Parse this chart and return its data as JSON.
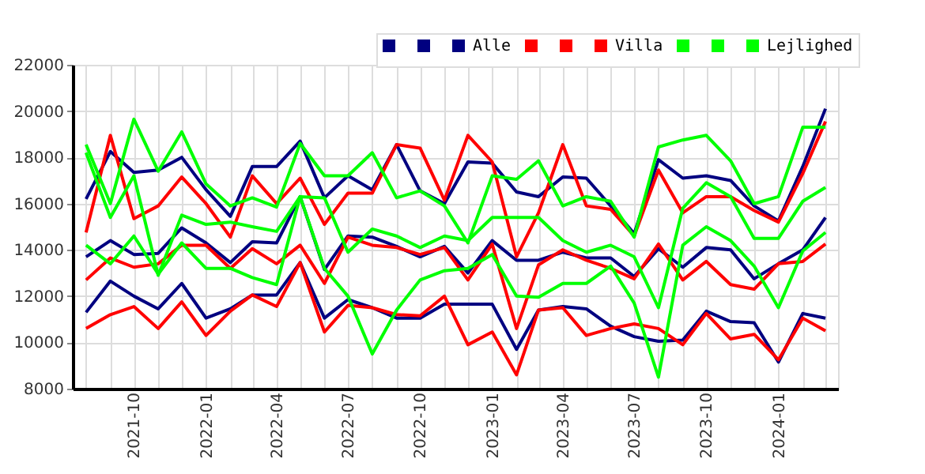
{
  "chart_data": {
    "type": "line",
    "x": [
      "2021-08",
      "2021-09",
      "2021-10",
      "2021-11",
      "2021-12",
      "2022-01",
      "2022-02",
      "2022-03",
      "2022-04",
      "2022-05",
      "2022-06",
      "2022-07",
      "2022-08",
      "2022-09",
      "2022-10",
      "2022-11",
      "2022-12",
      "2023-01",
      "2023-02",
      "2023-03",
      "2023-04",
      "2023-05",
      "2023-06",
      "2023-07",
      "2023-08",
      "2023-09",
      "2023-10",
      "2023-11",
      "2023-12",
      "2024-01",
      "2024-02",
      "2024-03"
    ],
    "series": [
      {
        "color": "#000080",
        "values": [
          16200,
          18250,
          17350,
          17450,
          18000,
          16600,
          15450,
          17600,
          17600,
          18700,
          16250,
          17200,
          16600,
          18550,
          16550,
          16000,
          17800,
          17750,
          16500,
          16300,
          17150,
          17100,
          15900,
          14700,
          17900,
          17100,
          17200,
          17000,
          15900,
          15250,
          17600,
          20100
        ]
      },
      {
        "color": "#000080",
        "values": [
          13700,
          14400,
          13800,
          13850,
          14950,
          14300,
          13450,
          14350,
          14300,
          16300,
          13150,
          14600,
          14550,
          14150,
          13700,
          14150,
          13000,
          14400,
          13550,
          13550,
          13900,
          13650,
          13650,
          12850,
          14050,
          13250,
          14100,
          14000,
          12750,
          13400,
          14000,
          15400
        ]
      },
      {
        "name": "Alle",
        "color": "#000080",
        "values": [
          11300,
          12650,
          12000,
          11450,
          12550,
          11050,
          11450,
          12050,
          12050,
          13450,
          11050,
          11850,
          11500,
          11050,
          11050,
          11650,
          11650,
          11650,
          9700,
          11400,
          11550,
          11450,
          10700,
          10250,
          10050,
          10100,
          11350,
          10900,
          10850,
          9150,
          11250,
          11050
        ]
      },
      {
        "color": "#ff0000",
        "values": [
          14750,
          18950,
          15350,
          15900,
          17150,
          16000,
          14550,
          17200,
          16000,
          17100,
          15100,
          16450,
          16450,
          18550,
          18400,
          16150,
          18950,
          17800,
          13700,
          15600,
          18550,
          15900,
          15750,
          14600,
          17450,
          15600,
          16300,
          16300,
          15700,
          15200,
          17300,
          19550
        ]
      },
      {
        "color": "#ff0000",
        "values": [
          12700,
          13650,
          13250,
          13400,
          14200,
          14200,
          13200,
          14050,
          13400,
          14200,
          12550,
          14550,
          14200,
          14100,
          13800,
          14100,
          12700,
          14250,
          10600,
          13350,
          14000,
          13550,
          13200,
          12750,
          14250,
          12700,
          13500,
          12500,
          12300,
          13400,
          13500,
          14250
        ]
      },
      {
        "name": "Villa",
        "color": "#ff0000",
        "values": [
          10600,
          11200,
          11550,
          10600,
          11750,
          10300,
          11350,
          12050,
          11550,
          13450,
          10450,
          11600,
          11500,
          11200,
          11150,
          12000,
          9900,
          10450,
          8600,
          11400,
          11500,
          10300,
          10600,
          10800,
          10600,
          9900,
          11250,
          10150,
          10350,
          9250,
          11050,
          10500
        ]
      },
      {
        "color": "#00ff00",
        "values": [
          18550,
          16000,
          19650,
          17400,
          19100,
          16850,
          15900,
          16250,
          15850,
          18600,
          17200,
          17200,
          18200,
          16250,
          16550,
          15900,
          14300,
          17200,
          17050,
          17850,
          15900,
          16300,
          16100,
          14550,
          18450,
          18750,
          18950,
          17850,
          16000,
          16300,
          19300,
          19300
        ]
      },
      {
        "color": "#00ff00",
        "values": [
          18200,
          15400,
          17200,
          12900,
          15500,
          15100,
          15200,
          15000,
          14800,
          16300,
          16250,
          13900,
          14900,
          14600,
          14100,
          14600,
          14400,
          15400,
          15400,
          15400,
          14400,
          13900,
          14200,
          13700,
          11500,
          15800,
          16900,
          16300,
          14500,
          14500,
          16100,
          16700
        ]
      },
      {
        "name": "Lejlighed",
        "color": "#00ff00",
        "values": [
          14200,
          13400,
          14600,
          12950,
          14300,
          13200,
          13200,
          12800,
          12500,
          16300,
          13200,
          12000,
          9500,
          11400,
          12700,
          13100,
          13200,
          13800,
          12000,
          11950,
          12550,
          12550,
          13300,
          11700,
          8500,
          14200,
          15000,
          14400,
          13300,
          11500,
          13950,
          14750
        ]
      }
    ],
    "xlim": [
      "2021-07-15",
      "2024-03-17"
    ],
    "xticks": [
      {
        "value": "2021-08",
        "label": null
      },
      {
        "value": "2021-09",
        "label": null
      },
      "2021-10",
      {
        "value": "2021-11",
        "label": null
      },
      {
        "value": "2021-12",
        "label": null
      },
      "2022-01",
      {
        "value": "2022-02",
        "label": null
      },
      {
        "value": "2022-03",
        "label": null
      },
      "2022-04",
      {
        "value": "2022-05",
        "label": null
      },
      {
        "value": "2022-06",
        "label": null
      },
      "2022-07",
      {
        "value": "2022-08",
        "label": null
      },
      {
        "value": "2022-09",
        "label": null
      },
      "2022-10",
      {
        "value": "2022-11",
        "label": null
      },
      {
        "value": "2022-12",
        "label": null
      },
      "2023-01",
      {
        "value": "2023-02",
        "label": null
      },
      {
        "value": "2023-03",
        "label": null
      },
      "2023-04",
      {
        "value": "2023-05",
        "label": null
      },
      {
        "value": "2023-06",
        "label": null
      },
      "2023-07",
      {
        "value": "2023-08",
        "label": null
      },
      {
        "value": "2023-09",
        "label": null
      },
      "2023-10",
      {
        "value": "2023-11",
        "label": null
      },
      {
        "value": "2023-12",
        "label": null
      },
      "2024-01",
      {
        "value": "2024-02",
        "label": null
      },
      {
        "value": "2024-03",
        "label": null
      }
    ],
    "ylim": [
      8000,
      22000
    ],
    "yticks": [
      8000,
      10000,
      12000,
      14000,
      16000,
      18000,
      20000,
      22000
    ],
    "grid": true,
    "legend": "top right"
  }
}
